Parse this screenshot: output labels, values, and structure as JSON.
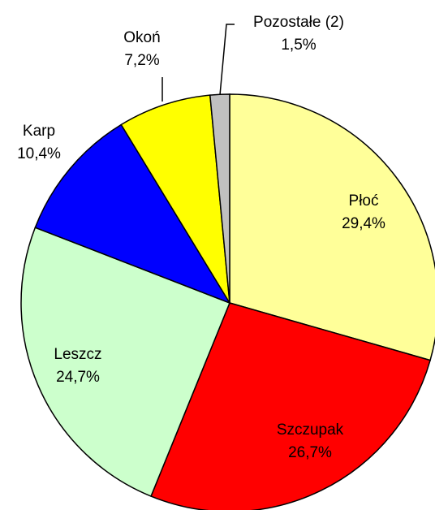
{
  "chart_data": {
    "type": "pie",
    "categories": [
      "Płoć",
      "Szczupak",
      "Leszcz",
      "Karp",
      "Okoń",
      "Pozostałe (2)"
    ],
    "values": [
      29.4,
      26.7,
      24.7,
      10.4,
      7.2,
      1.5
    ],
    "value_labels": [
      "29,4%",
      "26,7%",
      "24,7%",
      "10,4%",
      "7,2%",
      "1,5%"
    ],
    "colors": [
      "#ffff99",
      "#ff0000",
      "#ccffcc",
      "#0000ff",
      "#ffff00",
      "#c0c0c0"
    ]
  }
}
